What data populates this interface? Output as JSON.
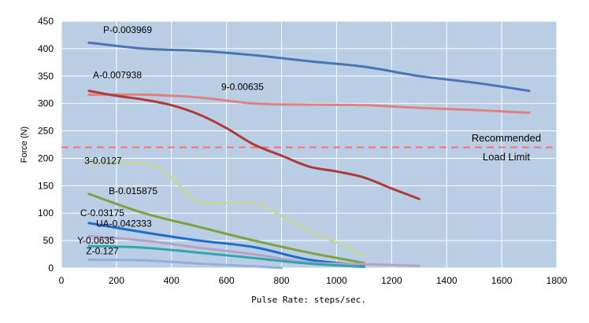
{
  "chart_data": {
    "type": "line",
    "xlabel": "Pulse Rate: steps/sec.",
    "ylabel": "Force (N)",
    "xlim": [
      0,
      1800
    ],
    "ylim": [
      0,
      450
    ],
    "x_ticks": [
      "0",
      "200",
      "400",
      "600",
      "800",
      "1000",
      "1200",
      "1400",
      "1600",
      "1800"
    ],
    "y_ticks": [
      "0",
      "50",
      "100",
      "150",
      "200",
      "250",
      "300",
      "350",
      "400",
      "450"
    ],
    "grid": true,
    "plot_background": "#b9cde5",
    "reference_line": {
      "y": 220,
      "color": "#ff6f6f",
      "label_line1": "Recommended",
      "label_line2": "Load Limit"
    },
    "series": [
      {
        "name": "P-0.003969",
        "color": "#4a74b4",
        "points": [
          [
            100,
            411
          ],
          [
            300,
            400
          ],
          [
            500,
            396
          ],
          [
            700,
            388
          ],
          [
            900,
            377
          ],
          [
            1100,
            367
          ],
          [
            1300,
            350
          ],
          [
            1500,
            338
          ],
          [
            1700,
            323
          ]
        ]
      },
      {
        "name": "9-0.00635",
        "color": "#e08080",
        "points": [
          [
            100,
            316
          ],
          [
            300,
            316
          ],
          [
            500,
            311
          ],
          [
            700,
            300
          ],
          [
            900,
            298
          ],
          [
            1100,
            297
          ],
          [
            1300,
            292
          ],
          [
            1500,
            288
          ],
          [
            1700,
            283
          ]
        ]
      },
      {
        "name": "A-0.007938",
        "color": "#b03a37",
        "points": [
          [
            100,
            323
          ],
          [
            200,
            314
          ],
          [
            300,
            307
          ],
          [
            400,
            297
          ],
          [
            500,
            280
          ],
          [
            600,
            255
          ],
          [
            700,
            225
          ],
          [
            800,
            205
          ],
          [
            900,
            185
          ],
          [
            1000,
            176
          ],
          [
            1100,
            165
          ],
          [
            1200,
            145
          ],
          [
            1300,
            126
          ]
        ]
      },
      {
        "name": "3-0.0127",
        "color": "#c3d69b",
        "points": [
          [
            100,
            190
          ],
          [
            300,
            190
          ],
          [
            400,
            165
          ],
          [
            500,
            122
          ],
          [
            700,
            118
          ],
          [
            800,
            95
          ],
          [
            900,
            68
          ],
          [
            1000,
            46
          ],
          [
            1100,
            23
          ]
        ]
      },
      {
        "name": "B-0.015875",
        "color": "#7ba23f",
        "points": [
          [
            100,
            135
          ],
          [
            300,
            100
          ],
          [
            500,
            75
          ],
          [
            700,
            50
          ],
          [
            900,
            28
          ],
          [
            1100,
            9
          ]
        ]
      },
      {
        "name": "C-0.03175",
        "color": "#1f6bcc",
        "points": [
          [
            100,
            82
          ],
          [
            300,
            65
          ],
          [
            500,
            50
          ],
          [
            700,
            38
          ],
          [
            900,
            15
          ],
          [
            1100,
            5
          ]
        ]
      },
      {
        "name": "UA-0.042333",
        "color": "#b3a2c7",
        "points": [
          [
            100,
            58
          ],
          [
            300,
            50
          ],
          [
            500,
            37
          ],
          [
            700,
            25
          ],
          [
            900,
            10
          ],
          [
            1100,
            7
          ],
          [
            1300,
            4
          ]
        ]
      },
      {
        "name": "Y-0.0635",
        "color": "#31a6a8",
        "points": [
          [
            100,
            40
          ],
          [
            300,
            37
          ],
          [
            500,
            28
          ],
          [
            700,
            18
          ],
          [
            900,
            8
          ],
          [
            1100,
            2
          ]
        ]
      },
      {
        "name": "Z-0.127",
        "color": "#95aee0",
        "points": [
          [
            100,
            15
          ],
          [
            300,
            14
          ],
          [
            500,
            8
          ],
          [
            700,
            3
          ],
          [
            800,
            0
          ]
        ]
      }
    ]
  }
}
